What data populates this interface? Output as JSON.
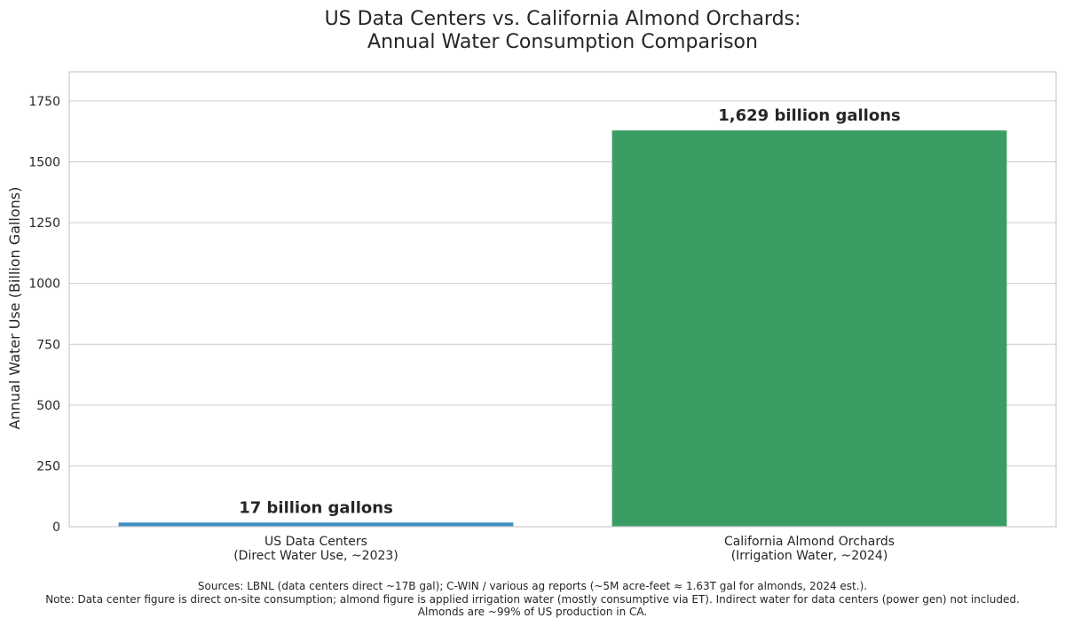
{
  "chart_data": {
    "type": "bar",
    "title_lines": [
      "US Data Centers vs. California Almond Orchards:",
      "Annual Water Consumption Comparison"
    ],
    "ylabel": "Annual Water Use (Billion Gallons)",
    "xlabel": "",
    "ylim": [
      0,
      1870
    ],
    "yticks": [
      0,
      250,
      500,
      750,
      1000,
      1250,
      1500,
      1750
    ],
    "grid": true,
    "bars": [
      {
        "category_lines": [
          "US Data Centers",
          "(Direct Water Use, ~2023)"
        ],
        "value": 17,
        "label": "17 billion gallons",
        "color": "#3b8fc2"
      },
      {
        "category_lines": [
          "California Almond Orchards",
          "(Irrigation Water, ~2024)"
        ],
        "value": 1629,
        "label": "1,629 billion gallons",
        "color": "#3a9e64"
      }
    ]
  },
  "footnote_lines": [
    "Sources: LBNL (data centers direct ~17B gal); C-WIN / various ag reports (~5M acre-feet ≈ 1.63T gal for almonds, 2024 est.).",
    "Note: Data center figure is direct on-site consumption; almond figure is applied irrigation water (mostly consumptive via ET). Indirect water for data centers (power gen) not included.",
    "Almonds are ~99% of US production in CA."
  ]
}
